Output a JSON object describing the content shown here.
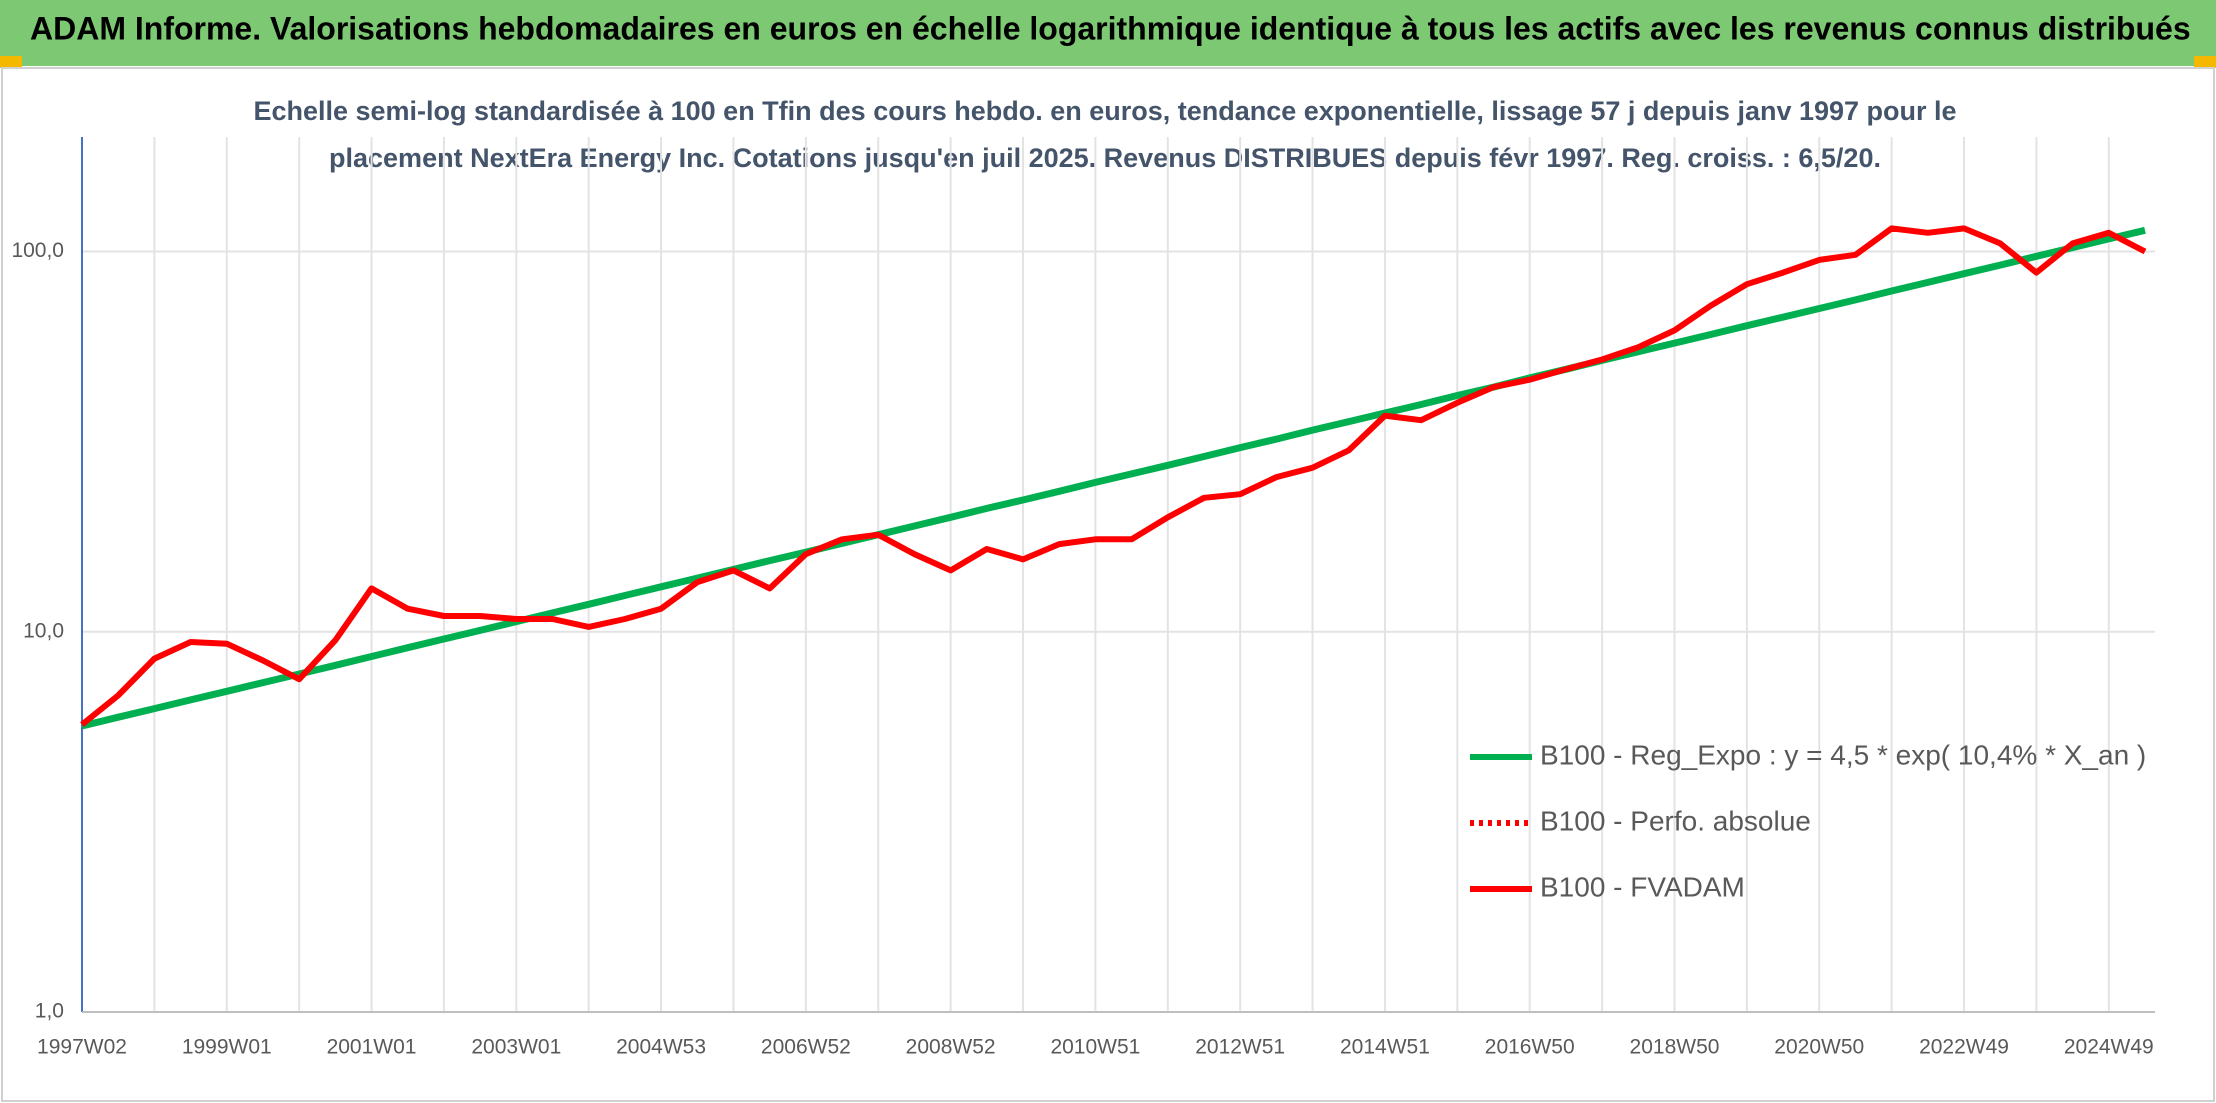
{
  "chart_data": {
    "type": "line",
    "title": "ADAM Informe. Valorisations hebdomadaires en euros en échelle logarithmique identique à tous les actifs avec les revenus connus distribués",
    "subtitle": [
      "Echelle semi-log standardisée à 100 en Tfin des cours hebdo. en euros, tendance exponentielle, lissage 57 j depuis janv 1997 pour le",
      "placement NextEra Energy Inc. Cotations jusqu'en juil 2025. Revenus DISTRIBUES depuis févr 1997. Reg. croiss. : 6,5/20."
    ],
    "categories": [
      "1997W02",
      null,
      null,
      null,
      "1999W01",
      null,
      null,
      null,
      "2001W01",
      null,
      null,
      null,
      "2003W01",
      null,
      null,
      null,
      "2004W53",
      null,
      null,
      null,
      "2006W52",
      null,
      null,
      null,
      "2008W52",
      null,
      null,
      null,
      "2010W51",
      null,
      null,
      null,
      "2012W51",
      null,
      null,
      null,
      "2014W51",
      null,
      null,
      null,
      "2016W50",
      null,
      null,
      null,
      "2018W50",
      null,
      null,
      null,
      "2020W50",
      null,
      null,
      null,
      "2022W49",
      null,
      null,
      null,
      "2024W49",
      null
    ],
    "series": [
      {
        "name": "B100 - Reg_Expo : y = 4,5 * exp( 10,4% *  X_an )",
        "color": "#00b050",
        "dash": "solid",
        "values": [
          5.65,
          5.96,
          6.28,
          6.62,
          6.97,
          7.35,
          7.74,
          8.16,
          8.61,
          9.08,
          9.57,
          10.08,
          10.63,
          11.21,
          11.81,
          12.45,
          13.13,
          13.84,
          14.59,
          15.38,
          16.2,
          17.08,
          18.0,
          18.97,
          20.0,
          21.1,
          22.2,
          23.4,
          24.7,
          26.0,
          27.4,
          28.9,
          30.5,
          32.1,
          33.9,
          35.7,
          37.6,
          39.6,
          41.8,
          44.0,
          46.5,
          49.0,
          51.7,
          54.5,
          57.4,
          60.5,
          63.8,
          67.2,
          70.8,
          74.6,
          78.7,
          82.9,
          87.4,
          92.1,
          97.1,
          102.4,
          107.9,
          113.7
        ]
      },
      {
        "name": "B100 - Perfo. absolue",
        "color": "#ff0000",
        "dash": "dotted",
        "values": [
          null,
          null,
          null,
          null,
          null,
          null,
          null,
          null,
          null,
          null,
          null,
          null,
          null,
          null,
          null,
          null,
          null,
          null,
          null,
          null,
          null,
          null,
          null,
          null,
          null,
          null,
          null,
          null,
          null,
          null,
          null,
          null,
          null,
          null,
          null,
          null,
          null,
          null,
          null,
          null,
          null,
          null,
          null,
          null,
          null,
          null,
          null,
          null,
          null,
          null,
          null,
          null,
          null,
          null,
          null,
          null,
          null,
          null
        ]
      },
      {
        "name": "B100 - FVADAM",
        "color": "#ff0000",
        "dash": "solid",
        "values": [
          5.7,
          6.8,
          8.5,
          9.4,
          9.3,
          8.4,
          7.5,
          9.5,
          13,
          11.5,
          11,
          11,
          10.8,
          10.8,
          10.3,
          10.8,
          11.5,
          13.5,
          14.5,
          13,
          16,
          17.5,
          18,
          16,
          14.5,
          16.5,
          15.5,
          17,
          17.5,
          17.5,
          20,
          22.5,
          23,
          25.5,
          27,
          30,
          37,
          36,
          40,
          44,
          46,
          49,
          52,
          56,
          62,
          72,
          82,
          88,
          95,
          98,
          115,
          112,
          115,
          105,
          88,
          105,
          112,
          100
        ]
      }
    ],
    "log_scale": true,
    "ylim": [
      1,
      200
    ],
    "yticks": [
      {
        "value": 1,
        "label": "1,0"
      },
      {
        "value": 10,
        "label": "10,0"
      },
      {
        "value": 100,
        "label": "100,0"
      }
    ],
    "grid": true,
    "legend": "lower right"
  }
}
